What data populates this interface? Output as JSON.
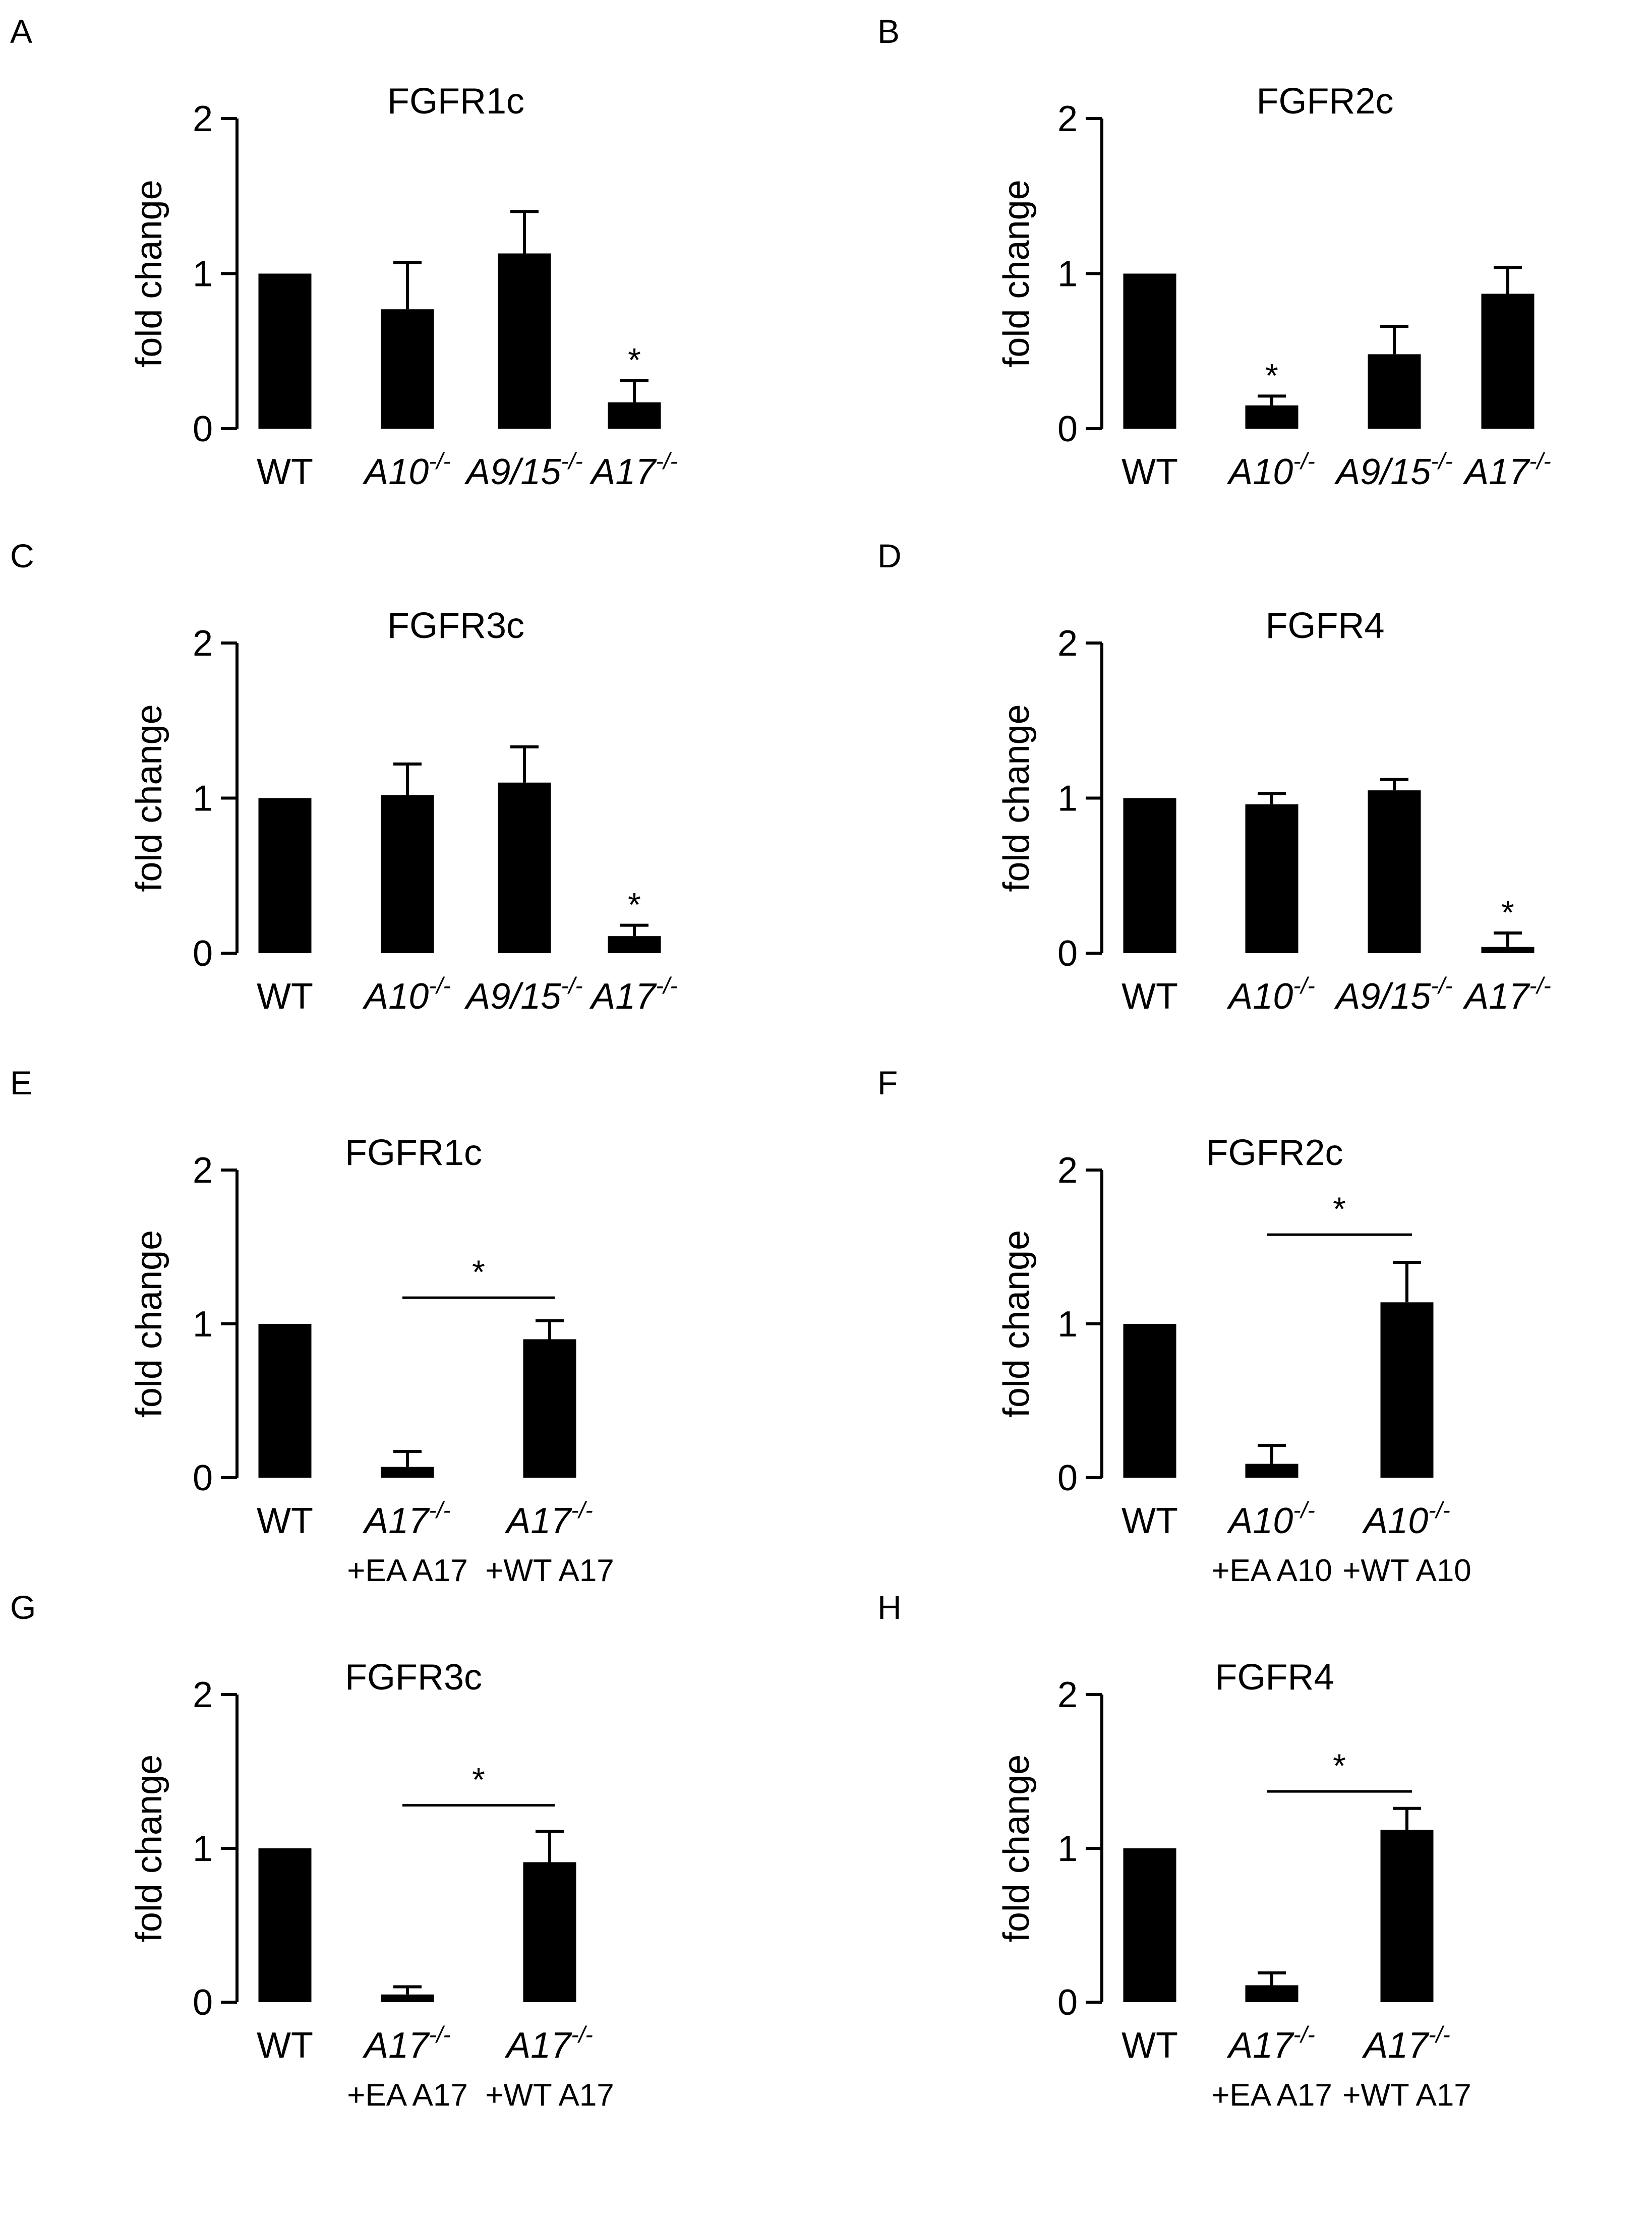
{
  "figure": {
    "background": "#ffffff",
    "bar_color": "#000000"
  },
  "chart_data": [
    {
      "panel": "A",
      "type": "bar",
      "title": "FGFR1c",
      "xlabel": "",
      "ylabel": "fold change",
      "ylim": [
        0,
        2
      ],
      "yticks": [
        "0",
        "1",
        "2"
      ],
      "categories": [
        {
          "main": "WT",
          "italic": false,
          "sup": "",
          "sub": ""
        },
        {
          "main": "A10",
          "italic": true,
          "sup": "-/-",
          "sub": ""
        },
        {
          "main": "A9/15",
          "italic": true,
          "sup": "-/-",
          "sub": ""
        },
        {
          "main": "A17",
          "italic": true,
          "sup": "-/-",
          "sub": ""
        }
      ],
      "values": [
        1.0,
        0.77,
        1.13,
        0.17
      ],
      "errors": [
        0,
        0.3,
        0.27,
        0.14
      ],
      "significance": [
        {
          "bar": 3,
          "label": "*"
        }
      ],
      "bracket": null
    },
    {
      "panel": "B",
      "type": "bar",
      "title": "FGFR2c",
      "xlabel": "",
      "ylabel": "fold change",
      "ylim": [
        0,
        2
      ],
      "yticks": [
        "0",
        "1",
        "2"
      ],
      "categories": [
        {
          "main": "WT",
          "italic": false,
          "sup": "",
          "sub": ""
        },
        {
          "main": "A10",
          "italic": true,
          "sup": "-/-",
          "sub": ""
        },
        {
          "main": "A9/15",
          "italic": true,
          "sup": "-/-",
          "sub": ""
        },
        {
          "main": "A17",
          "italic": true,
          "sup": "-/-",
          "sub": ""
        }
      ],
      "values": [
        1.0,
        0.15,
        0.48,
        0.87
      ],
      "errors": [
        0,
        0.06,
        0.18,
        0.17
      ],
      "significance": [
        {
          "bar": 1,
          "label": "*"
        }
      ],
      "bracket": null
    },
    {
      "panel": "C",
      "type": "bar",
      "title": "FGFR3c",
      "xlabel": "",
      "ylabel": "fold change",
      "ylim": [
        0,
        2
      ],
      "yticks": [
        "0",
        "1",
        "2"
      ],
      "categories": [
        {
          "main": "WT",
          "italic": false,
          "sup": "",
          "sub": ""
        },
        {
          "main": "A10",
          "italic": true,
          "sup": "-/-",
          "sub": ""
        },
        {
          "main": "A9/15",
          "italic": true,
          "sup": "-/-",
          "sub": ""
        },
        {
          "main": "A17",
          "italic": true,
          "sup": "-/-",
          "sub": ""
        }
      ],
      "values": [
        1.0,
        1.02,
        1.1,
        0.11
      ],
      "errors": [
        0,
        0.2,
        0.23,
        0.07
      ],
      "significance": [
        {
          "bar": 3,
          "label": "*"
        }
      ],
      "bracket": null
    },
    {
      "panel": "D",
      "type": "bar",
      "title": "FGFR4",
      "xlabel": "",
      "ylabel": "fold change",
      "ylim": [
        0,
        2
      ],
      "yticks": [
        "0",
        "1",
        "2"
      ],
      "categories": [
        {
          "main": "WT",
          "italic": false,
          "sup": "",
          "sub": ""
        },
        {
          "main": "A10",
          "italic": true,
          "sup": "-/-",
          "sub": ""
        },
        {
          "main": "A9/15",
          "italic": true,
          "sup": "-/-",
          "sub": ""
        },
        {
          "main": "A17",
          "italic": true,
          "sup": "-/-",
          "sub": ""
        }
      ],
      "values": [
        1.0,
        0.96,
        1.05,
        0.04
      ],
      "errors": [
        0,
        0.07,
        0.07,
        0.09
      ],
      "significance": [
        {
          "bar": 3,
          "label": "*"
        }
      ],
      "bracket": null
    },
    {
      "panel": "E",
      "type": "bar",
      "title": "FGFR1c",
      "xlabel": "",
      "ylabel": "fold change",
      "ylim": [
        0,
        2
      ],
      "yticks": [
        "0",
        "1",
        "2"
      ],
      "categories": [
        {
          "main": "WT",
          "italic": false,
          "sup": "",
          "sub": ""
        },
        {
          "main": "A17",
          "italic": true,
          "sup": "-/-",
          "sub": "+EA A17"
        },
        {
          "main": "A17",
          "italic": true,
          "sup": "-/-",
          "sub": "+WT A17"
        }
      ],
      "values": [
        1.0,
        0.07,
        0.9
      ],
      "errors": [
        0,
        0.1,
        0.12
      ],
      "significance": [],
      "bracket": {
        "from": 1,
        "to": 2,
        "level": 1.17,
        "label": "*"
      }
    },
    {
      "panel": "F",
      "type": "bar",
      "title": "FGFR2c",
      "xlabel": "",
      "ylabel": "fold change",
      "ylim": [
        0,
        2
      ],
      "yticks": [
        "0",
        "1",
        "2"
      ],
      "categories": [
        {
          "main": "WT",
          "italic": false,
          "sup": "",
          "sub": ""
        },
        {
          "main": "A10",
          "italic": true,
          "sup": "-/-",
          "sub": "+EA A10"
        },
        {
          "main": "A10",
          "italic": true,
          "sup": "-/-",
          "sub": "+WT A10"
        }
      ],
      "values": [
        1.0,
        0.09,
        1.14
      ],
      "errors": [
        0,
        0.12,
        0.26
      ],
      "significance": [],
      "bracket": {
        "from": 1,
        "to": 2,
        "level": 1.58,
        "label": "*"
      }
    },
    {
      "panel": "G",
      "type": "bar",
      "title": "FGFR3c",
      "xlabel": "",
      "ylabel": "fold change",
      "ylim": [
        0,
        2
      ],
      "yticks": [
        "0",
        "1",
        "2"
      ],
      "categories": [
        {
          "main": "WT",
          "italic": false,
          "sup": "",
          "sub": ""
        },
        {
          "main": "A17",
          "italic": true,
          "sup": "-/-",
          "sub": "+EA A17"
        },
        {
          "main": "A17",
          "italic": true,
          "sup": "-/-",
          "sub": "+WT A17"
        }
      ],
      "values": [
        1.0,
        0.05,
        0.91
      ],
      "errors": [
        0,
        0.05,
        0.2
      ],
      "significance": [],
      "bracket": {
        "from": 1,
        "to": 2,
        "level": 1.28,
        "label": "*"
      }
    },
    {
      "panel": "H",
      "type": "bar",
      "title": "FGFR4",
      "xlabel": "",
      "ylabel": "fold change",
      "ylim": [
        0,
        2
      ],
      "yticks": [
        "0",
        "1",
        "2"
      ],
      "categories": [
        {
          "main": "WT",
          "italic": false,
          "sup": "",
          "sub": ""
        },
        {
          "main": "A17",
          "italic": true,
          "sup": "-/-",
          "sub": "+EA A17"
        },
        {
          "main": "A17",
          "italic": true,
          "sup": "-/-",
          "sub": "+WT A17"
        }
      ],
      "values": [
        1.0,
        0.11,
        1.12
      ],
      "errors": [
        0,
        0.08,
        0.14
      ],
      "significance": [],
      "bracket": {
        "from": 1,
        "to": 2,
        "level": 1.37,
        "label": "*"
      }
    }
  ]
}
